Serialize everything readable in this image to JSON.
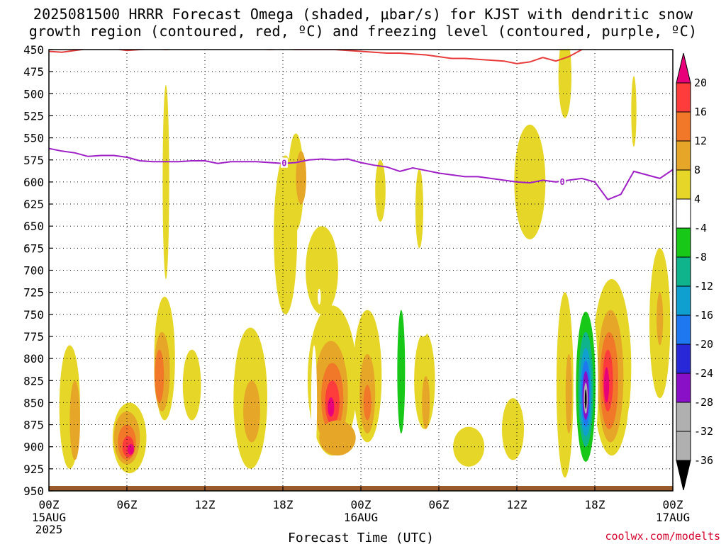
{
  "title": {
    "line1": "2025081500 HRRR Forecast Omega (shaded, μbar/s) for KJST with dendritic snow",
    "line2": "growth region (contoured, red, ºC) and freezing level (contoured, purple, ºC)"
  },
  "credit": "coolwx.com/modelts",
  "chart_data": {
    "type": "heatmap",
    "xlabel": "Forecast Time (UTC)",
    "ylabel": "",
    "x_range_hours": [
      0,
      48
    ],
    "y_range_mb": [
      450,
      950
    ],
    "y_scale": "pressure (reversed)",
    "grid": "dotted",
    "y_ticks": [
      450,
      475,
      500,
      525,
      550,
      575,
      600,
      625,
      650,
      675,
      700,
      725,
      750,
      775,
      800,
      825,
      850,
      875,
      900,
      925,
      950
    ],
    "x_ticks": [
      {
        "hour": 0,
        "label": "00Z",
        "sub1": "15AUG",
        "sub2": "2025"
      },
      {
        "hour": 6,
        "label": "06Z",
        "sub1": "",
        "sub2": ""
      },
      {
        "hour": 12,
        "label": "12Z",
        "sub1": "",
        "sub2": ""
      },
      {
        "hour": 18,
        "label": "18Z",
        "sub1": "",
        "sub2": ""
      },
      {
        "hour": 24,
        "label": "00Z",
        "sub1": "16AUG",
        "sub2": ""
      },
      {
        "hour": 30,
        "label": "06Z",
        "sub1": "",
        "sub2": ""
      },
      {
        "hour": 36,
        "label": "12Z",
        "sub1": "",
        "sub2": ""
      },
      {
        "hour": 42,
        "label": "18Z",
        "sub1": "",
        "sub2": ""
      },
      {
        "hour": 48,
        "label": "00Z",
        "sub1": "17AUG",
        "sub2": ""
      }
    ],
    "colorbar": {
      "levels": [
        "20",
        "16",
        "12",
        "8",
        "4",
        "-4",
        "-8",
        "-12",
        "-16",
        "-20",
        "-24",
        "-28",
        "-32",
        "-36"
      ],
      "colors": [
        "#e8007a",
        "#ff3c3c",
        "#f07828",
        "#e6a628",
        "#e6d628",
        "#ffffff",
        "#18c818",
        "#10b48c",
        "#10a0d0",
        "#1e78f0",
        "#2828d8",
        "#8a10c8",
        "#b0b0b0",
        "#000000"
      ]
    },
    "series": [
      {
        "name": "",
        "color": "#e83c3c",
        "points": [
          [
            0,
            452
          ],
          [
            1,
            453
          ],
          [
            2,
            451
          ],
          [
            3,
            449
          ],
          [
            4,
            448
          ],
          [
            5,
            449
          ],
          [
            6,
            451
          ],
          [
            7,
            450
          ],
          [
            8,
            449
          ],
          [
            9,
            450
          ],
          [
            10,
            449
          ],
          [
            11,
            449
          ],
          [
            12,
            448
          ],
          [
            13,
            449
          ],
          [
            14,
            449
          ],
          [
            15,
            449
          ],
          [
            16,
            449
          ],
          [
            17,
            450
          ],
          [
            18,
            449
          ],
          [
            19,
            450
          ],
          [
            20,
            450
          ],
          [
            21,
            450
          ],
          [
            22,
            450
          ],
          [
            23,
            451
          ],
          [
            24,
            452
          ],
          [
            25,
            453
          ],
          [
            26,
            454
          ],
          [
            27,
            454
          ],
          [
            28,
            455
          ],
          [
            29,
            456
          ],
          [
            30,
            458
          ],
          [
            31,
            460
          ],
          [
            32,
            460
          ],
          [
            33,
            461
          ],
          [
            34,
            462
          ],
          [
            35,
            463
          ],
          [
            36,
            466
          ],
          [
            37,
            464
          ],
          [
            38,
            459
          ],
          [
            39,
            463
          ],
          [
            40,
            458
          ],
          [
            41,
            450
          ],
          [
            42,
            444
          ]
        ]
      },
      {
        "name": "",
        "color": "#a020c8",
        "label": "0",
        "label_hours": [
          18.1,
          39.5
        ],
        "points": [
          [
            0,
            562
          ],
          [
            1,
            565
          ],
          [
            2,
            567
          ],
          [
            3,
            571
          ],
          [
            4,
            570
          ],
          [
            5,
            570
          ],
          [
            6,
            572
          ],
          [
            7,
            576
          ],
          [
            8,
            577
          ],
          [
            9,
            577
          ],
          [
            10,
            577
          ],
          [
            11,
            576
          ],
          [
            12,
            576
          ],
          [
            13,
            579
          ],
          [
            14,
            577
          ],
          [
            15,
            577
          ],
          [
            16,
            577
          ],
          [
            17,
            578
          ],
          [
            18,
            579
          ],
          [
            19,
            578
          ],
          [
            20,
            575
          ],
          [
            21,
            574
          ],
          [
            22,
            575
          ],
          [
            23,
            574
          ],
          [
            24,
            578
          ],
          [
            25,
            581
          ],
          [
            26,
            583
          ],
          [
            27,
            588
          ],
          [
            28,
            584
          ],
          [
            29,
            587
          ],
          [
            30,
            590
          ],
          [
            31,
            592
          ],
          [
            32,
            594
          ],
          [
            33,
            594
          ],
          [
            34,
            596
          ],
          [
            35,
            598
          ],
          [
            36,
            600
          ],
          [
            37,
            601
          ],
          [
            38,
            598
          ],
          [
            39,
            600
          ],
          [
            40,
            598
          ],
          [
            41,
            596
          ],
          [
            42,
            600
          ],
          [
            43,
            620
          ],
          [
            44,
            614
          ],
          [
            45,
            588
          ],
          [
            46,
            592
          ],
          [
            47,
            596
          ],
          [
            48,
            586
          ]
        ]
      }
    ],
    "omega_cells": [
      {
        "hour": 1.6,
        "mb": 855,
        "w": 1.6,
        "h": 140,
        "band": "4"
      },
      {
        "hour": 2.0,
        "mb": 870,
        "w": 0.8,
        "h": 90,
        "band": "8"
      },
      {
        "hour": 6.2,
        "mb": 890,
        "w": 2.6,
        "h": 80,
        "band": "4"
      },
      {
        "hour": 6.0,
        "mb": 890,
        "w": 2.0,
        "h": 60,
        "band": "8"
      },
      {
        "hour": 6.0,
        "mb": 895,
        "w": 1.4,
        "h": 40,
        "band": "12"
      },
      {
        "hour": 6.1,
        "mb": 900,
        "w": 0.9,
        "h": 24,
        "band": "16"
      },
      {
        "hour": 6.3,
        "mb": 903,
        "w": 0.5,
        "h": 12,
        "band": "20"
      },
      {
        "hour": 8.9,
        "mb": 800,
        "w": 1.6,
        "h": 140,
        "band": "4"
      },
      {
        "hour": 8.7,
        "mb": 815,
        "w": 1.2,
        "h": 90,
        "band": "8"
      },
      {
        "hour": 8.5,
        "mb": 820,
        "w": 0.7,
        "h": 60,
        "band": "12"
      },
      {
        "hour": 9.0,
        "mb": 600,
        "w": 0.5,
        "h": 220,
        "band": "4"
      },
      {
        "hour": 11.0,
        "mb": 830,
        "w": 1.4,
        "h": 80,
        "band": "4"
      },
      {
        "hour": 15.5,
        "mb": 845,
        "w": 2.6,
        "h": 160,
        "band": "4"
      },
      {
        "hour": 15.6,
        "mb": 860,
        "w": 1.3,
        "h": 70,
        "band": "8"
      },
      {
        "hour": 18.2,
        "mb": 660,
        "w": 1.8,
        "h": 180,
        "band": "4"
      },
      {
        "hour": 19.0,
        "mb": 600,
        "w": 1.2,
        "h": 110,
        "band": "4"
      },
      {
        "hour": 19.4,
        "mb": 595,
        "w": 0.8,
        "h": 60,
        "band": "8"
      },
      {
        "hour": 21.0,
        "mb": 700,
        "w": 2.5,
        "h": 100,
        "band": "4"
      },
      {
        "hour": 21.8,
        "mb": 825,
        "w": 3.8,
        "h": 170,
        "band": "4"
      },
      {
        "hour": 21.7,
        "mb": 840,
        "w": 2.6,
        "h": 120,
        "band": "8"
      },
      {
        "hour": 21.8,
        "mb": 845,
        "w": 1.7,
        "h": 80,
        "band": "12"
      },
      {
        "hour": 21.8,
        "mb": 850,
        "w": 1.1,
        "h": 50,
        "band": "16"
      },
      {
        "hour": 21.7,
        "mb": 855,
        "w": 0.5,
        "h": 22,
        "band": "20"
      },
      {
        "hour": 24.5,
        "mb": 820,
        "w": 2.2,
        "h": 150,
        "band": "4"
      },
      {
        "hour": 24.5,
        "mb": 840,
        "w": 1.2,
        "h": 90,
        "band": "8"
      },
      {
        "hour": 24.5,
        "mb": 850,
        "w": 0.6,
        "h": 40,
        "band": "12"
      },
      {
        "hour": 22.2,
        "mb": 890,
        "w": 2.8,
        "h": 40,
        "band": "8"
      },
      {
        "hour": 25.5,
        "mb": 610,
        "w": 0.8,
        "h": 70,
        "band": "4"
      },
      {
        "hour": 28.5,
        "mb": 630,
        "w": 0.6,
        "h": 90,
        "band": "4"
      },
      {
        "hour": 28.9,
        "mb": 825,
        "w": 1.6,
        "h": 110,
        "band": "4"
      },
      {
        "hour": 29.0,
        "mb": 850,
        "w": 0.6,
        "h": 60,
        "band": "8"
      },
      {
        "hour": 32.3,
        "mb": 900,
        "w": 2.4,
        "h": 45,
        "band": "4"
      },
      {
        "hour": 35.7,
        "mb": 880,
        "w": 1.7,
        "h": 70,
        "band": "4"
      },
      {
        "hour": 37.0,
        "mb": 600,
        "w": 2.4,
        "h": 130,
        "band": "4"
      },
      {
        "hour": 39.7,
        "mb": 830,
        "w": 1.3,
        "h": 210,
        "band": "4"
      },
      {
        "hour": 40.0,
        "mb": 840,
        "w": 0.5,
        "h": 90,
        "band": "8"
      },
      {
        "hour": 39.7,
        "mb": 480,
        "w": 1.0,
        "h": 95,
        "band": "4"
      },
      {
        "hour": 43.3,
        "mb": 810,
        "w": 3.0,
        "h": 200,
        "band": "4"
      },
      {
        "hour": 43.2,
        "mb": 820,
        "w": 2.0,
        "h": 150,
        "band": "8"
      },
      {
        "hour": 43.1,
        "mb": 825,
        "w": 1.4,
        "h": 110,
        "band": "12"
      },
      {
        "hour": 43.0,
        "mb": 825,
        "w": 0.8,
        "h": 70,
        "band": "16"
      },
      {
        "hour": 42.9,
        "mb": 830,
        "w": 0.4,
        "h": 40,
        "band": "20"
      },
      {
        "hour": 45.0,
        "mb": 520,
        "w": 0.4,
        "h": 80,
        "band": "4"
      },
      {
        "hour": 47.0,
        "mb": 760,
        "w": 1.6,
        "h": 170,
        "band": "4"
      },
      {
        "hour": 47.0,
        "mb": 755,
        "w": 0.5,
        "h": 60,
        "band": "8"
      },
      {
        "hour": 27.2,
        "mb": 810,
        "w": 1.3,
        "h": 190,
        "band": "-4"
      },
      {
        "hour": 27.1,
        "mb": 815,
        "w": 0.6,
        "h": 140,
        "band": "-8"
      },
      {
        "hour": 28.8,
        "mb": 750,
        "w": 1.2,
        "h": 50,
        "band": "-4"
      },
      {
        "hour": 20.4,
        "mb": 850,
        "w": 0.45,
        "h": 130,
        "band": "-4"
      },
      {
        "hour": 20.8,
        "mb": 730,
        "w": 0.25,
        "h": 18,
        "band": "-4"
      },
      {
        "hour": 29.8,
        "mb": 890,
        "w": 1.4,
        "h": 40,
        "band": "-4"
      },
      {
        "hour": 41.3,
        "mb": 830,
        "w": 1.9,
        "h": 210,
        "band": "-4"
      },
      {
        "hour": 41.3,
        "mb": 832,
        "w": 1.5,
        "h": 170,
        "band": "-8"
      },
      {
        "hour": 41.3,
        "mb": 835,
        "w": 1.15,
        "h": 130,
        "band": "-12"
      },
      {
        "hour": 41.3,
        "mb": 838,
        "w": 0.9,
        "h": 100,
        "band": "-16"
      },
      {
        "hour": 41.3,
        "mb": 840,
        "w": 0.7,
        "h": 75,
        "band": "-20"
      },
      {
        "hour": 41.3,
        "mb": 842,
        "w": 0.5,
        "h": 55,
        "band": "-28"
      },
      {
        "hour": 41.3,
        "mb": 845,
        "w": 0.3,
        "h": 35,
        "band": "-32"
      },
      {
        "hour": 41.3,
        "mb": 846,
        "w": 0.14,
        "h": 22,
        "band": "-36"
      },
      {
        "hour": 44.8,
        "mb": 890,
        "w": 0.7,
        "h": 80,
        "band": "-4"
      }
    ]
  }
}
